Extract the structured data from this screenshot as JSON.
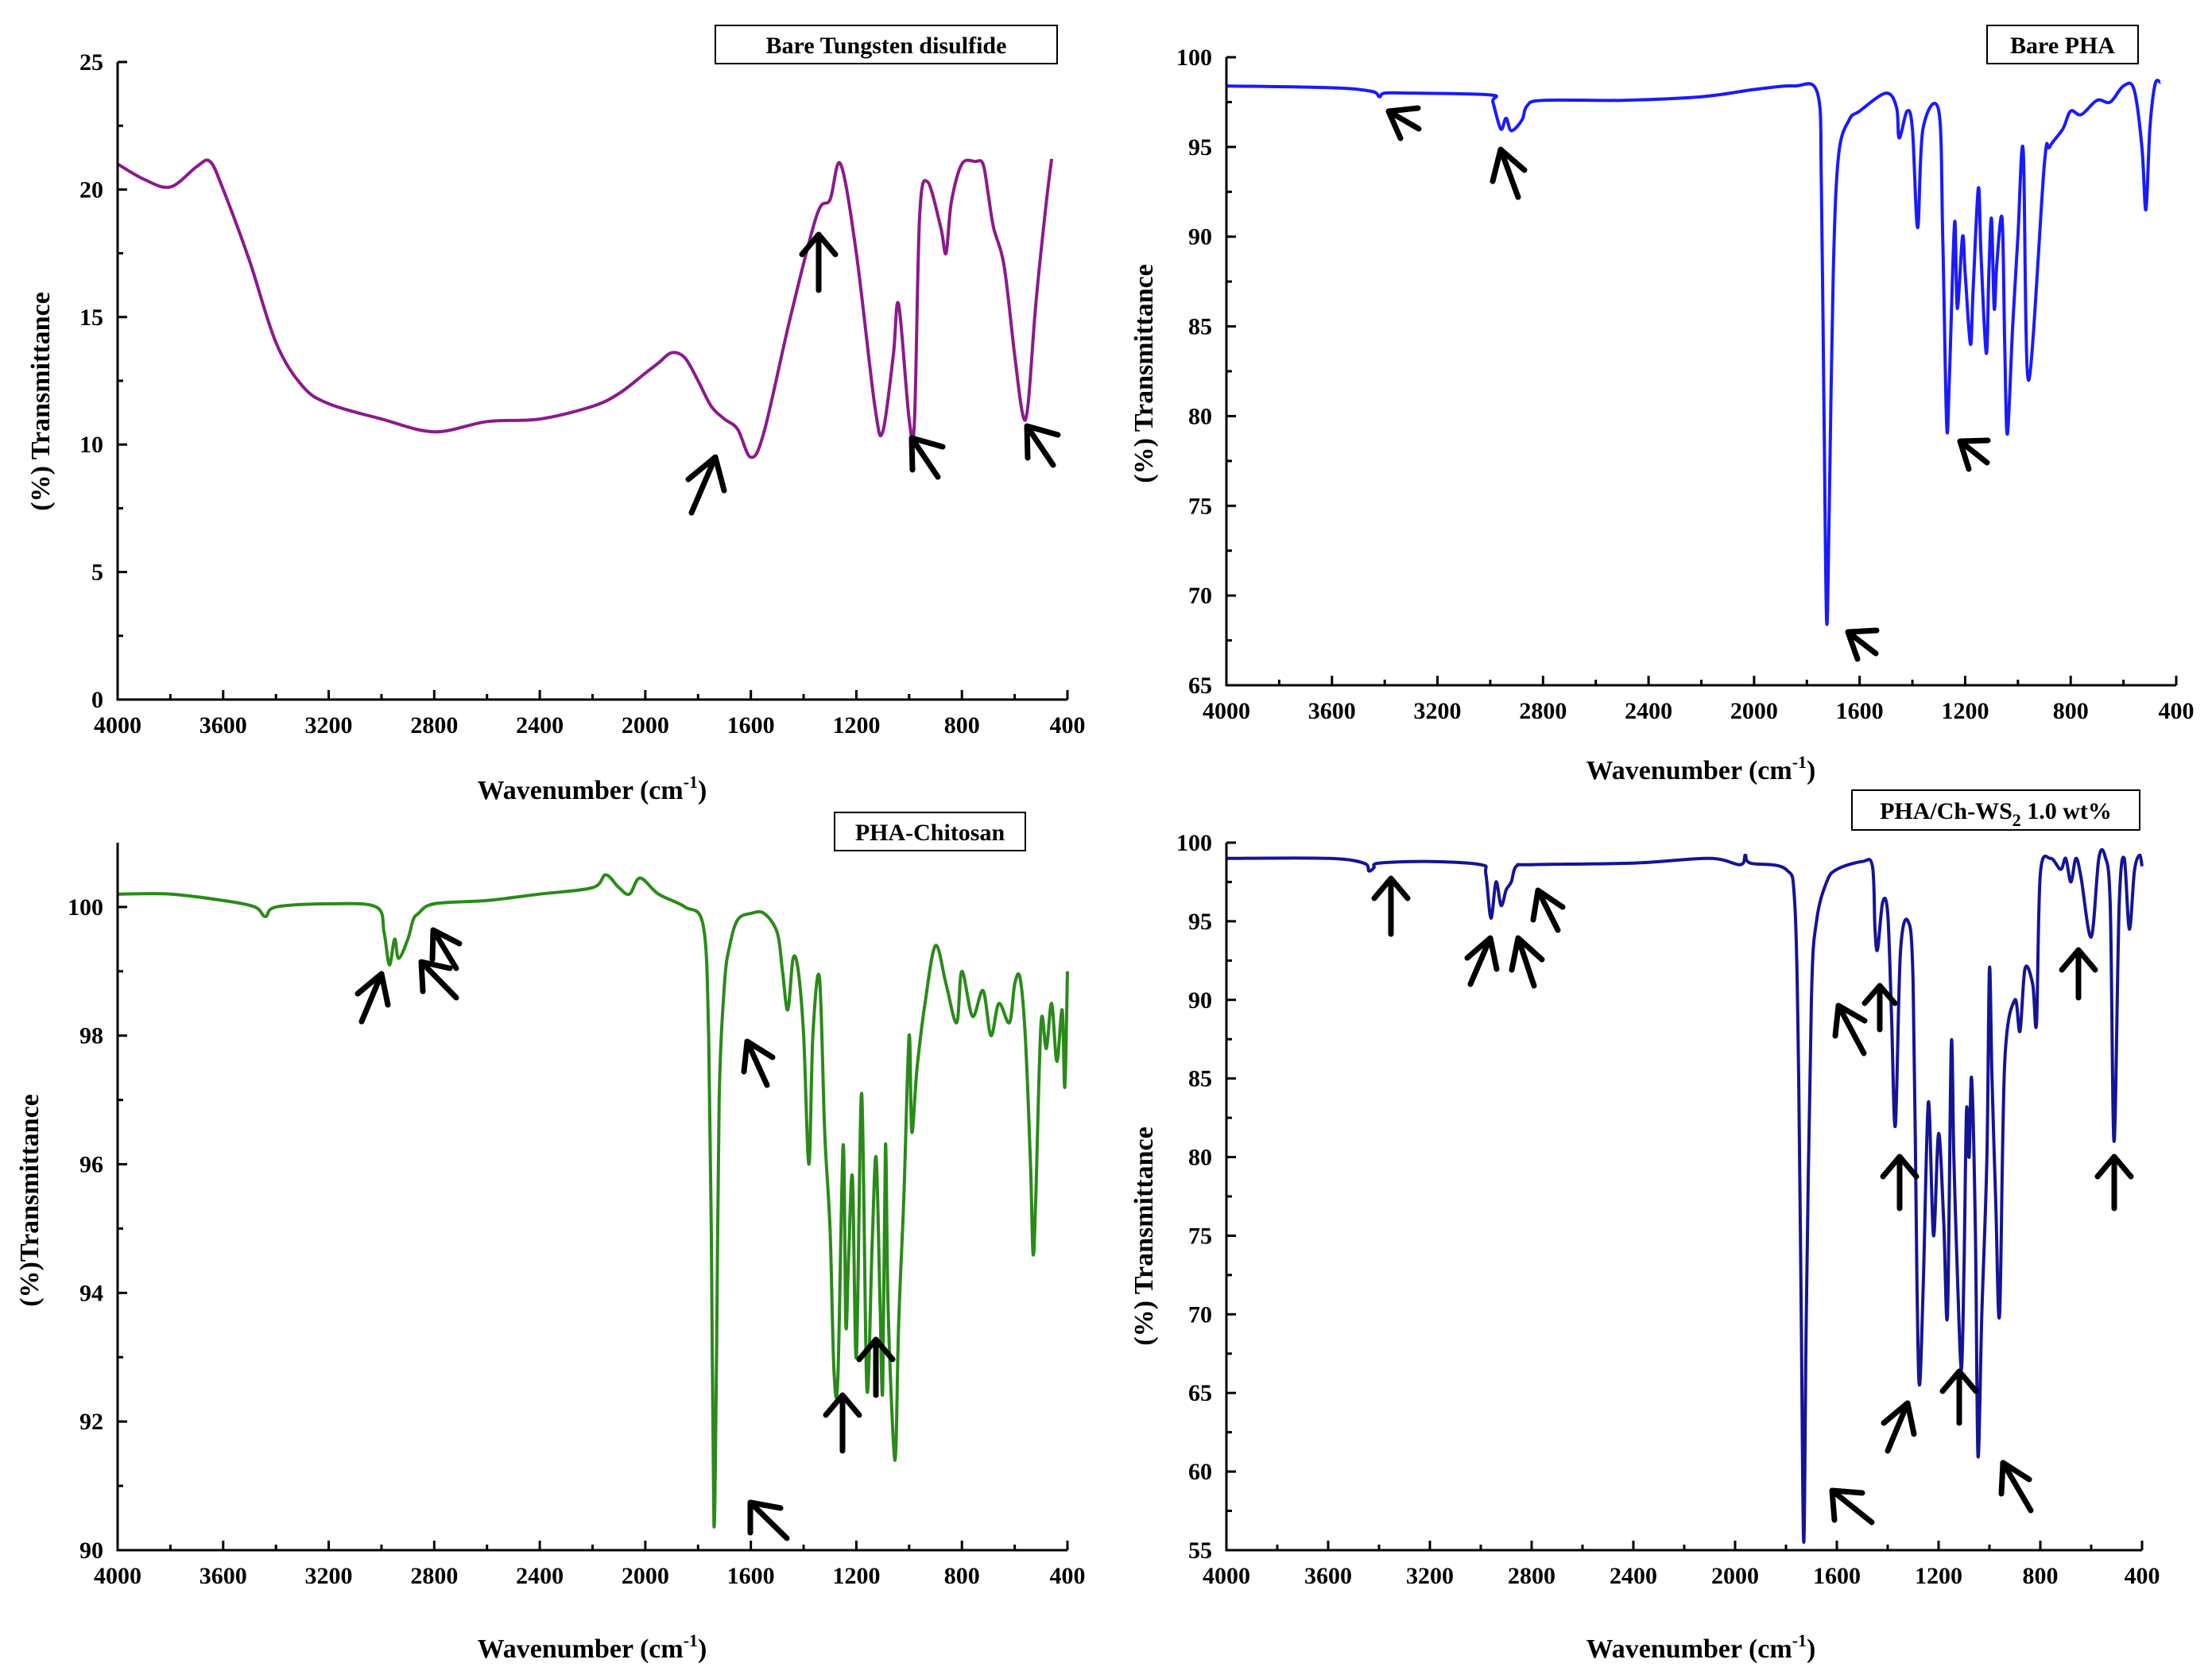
{
  "chart_data": [
    {
      "type": "line",
      "title": "Bare Tungsten disulfide",
      "xlabel": "Wavenumber (cm",
      "xlabel_sup": "-1",
      "xlabel_close": ")",
      "ylabel": "(%) Transmittance",
      "xlim": [
        4000,
        400
      ],
      "ylim": [
        0,
        25
      ],
      "xticks": [
        4000,
        3600,
        3200,
        2800,
        2400,
        2000,
        1600,
        1200,
        800,
        400
      ],
      "yticks": [
        0,
        5,
        10,
        15,
        20,
        25
      ],
      "color": "#8b1a8b",
      "series": [
        {
          "name": "Bare Tungsten disulfide",
          "x": [
            4000,
            3900,
            3800,
            3700,
            3650,
            3600,
            3500,
            3400,
            3300,
            3200,
            3000,
            2800,
            2600,
            2400,
            2200,
            2100,
            2000,
            1950,
            1900,
            1850,
            1800,
            1750,
            1700,
            1650,
            1600,
            1550,
            1450,
            1350,
            1300,
            1260,
            1200,
            1130,
            1100,
            1060,
            1040,
            1000,
            980,
            960,
            930,
            880,
            860,
            840,
            800,
            750,
            720,
            700,
            680,
            640,
            600,
            570,
            550,
            520,
            480,
            460
          ],
          "values": [
            21.0,
            20.4,
            20.1,
            20.9,
            21.1,
            20.0,
            17.2,
            14.0,
            12.3,
            11.6,
            11.0,
            10.5,
            10.9,
            11.0,
            11.5,
            12.0,
            12.8,
            13.2,
            13.6,
            13.4,
            12.5,
            11.5,
            11.0,
            10.6,
            9.5,
            10.5,
            15.0,
            19.0,
            19.6,
            21.0,
            17.5,
            11.5,
            10.5,
            13.5,
            15.5,
            11.0,
            10.9,
            19.0,
            20.3,
            18.5,
            17.5,
            19.5,
            21.0,
            21.1,
            21.0,
            19.8,
            18.5,
            17.0,
            13.5,
            11.2,
            11.5,
            15.5,
            19.5,
            21.2
          ]
        }
      ],
      "annotations": [
        "arrow",
        "arrow",
        "arrow",
        "arrow"
      ]
    },
    {
      "type": "line",
      "title": "Bare PHA",
      "xlabel": "Wavenumber (cm",
      "xlabel_sup": "-1",
      "xlabel_close": ")",
      "ylabel": "(%) Transmittance",
      "xlim": [
        4000,
        400
      ],
      "ylim": [
        65,
        100
      ],
      "xticks": [
        4000,
        3600,
        3200,
        2800,
        2400,
        2000,
        1600,
        1200,
        800,
        400
      ],
      "yticks": [
        65,
        70,
        75,
        80,
        85,
        90,
        95,
        100
      ],
      "color": "#1a1aff",
      "series": [
        {
          "name": "Bare PHA",
          "x": [
            4000,
            3600,
            3450,
            3420,
            3400,
            3300,
            3000,
            2990,
            2960,
            2940,
            2920,
            2880,
            2860,
            2800,
            2500,
            2200,
            2000,
            1850,
            1760,
            1745,
            1735,
            1725,
            1715,
            1700,
            1680,
            1640,
            1600,
            1500,
            1460,
            1450,
            1420,
            1400,
            1380,
            1360,
            1300,
            1285,
            1270,
            1260,
            1240,
            1230,
            1210,
            1200,
            1180,
            1170,
            1150,
            1140,
            1120,
            1110,
            1100,
            1090,
            1080,
            1060,
            1050,
            1040,
            1020,
            1000,
            980,
            960,
            900,
            880,
            830,
            800,
            760,
            700,
            650,
            600,
            560,
            530,
            515,
            500,
            480,
            460
          ],
          "values": [
            98.4,
            98.3,
            98.1,
            97.8,
            98.0,
            98.0,
            97.9,
            97.5,
            96.0,
            96.6,
            95.9,
            96.5,
            97.3,
            97.6,
            97.6,
            97.8,
            98.2,
            98.4,
            98.0,
            93.0,
            80.0,
            68.5,
            75.0,
            88.0,
            94.5,
            96.5,
            97.0,
            98.0,
            97.2,
            95.5,
            97.0,
            96.0,
            90.5,
            96.0,
            97.0,
            90.0,
            79.5,
            82.0,
            90.8,
            86.0,
            90.0,
            88.0,
            84.0,
            87.0,
            92.7,
            89.0,
            83.5,
            88.0,
            91.0,
            86.0,
            88.5,
            91.0,
            84.0,
            79.0,
            85.0,
            90.0,
            94.8,
            82.0,
            94.0,
            95.0,
            96.0,
            97.0,
            96.8,
            97.6,
            97.5,
            98.4,
            98.2,
            95.0,
            91.5,
            96.0,
            98.5,
            98.6
          ]
        }
      ],
      "annotations": [
        "arrow",
        "arrow",
        "arrow",
        "arrow"
      ]
    },
    {
      "type": "line",
      "title": "PHA-Chitosan",
      "xlabel": "Wavenumber (cm",
      "xlabel_sup": "-1",
      "xlabel_close": ")",
      "ylabel": "(%)Transmittance",
      "xlim": [
        4000,
        400
      ],
      "ylim": [
        90,
        101
      ],
      "xticks": [
        4000,
        3600,
        3200,
        2800,
        2400,
        2000,
        1600,
        1200,
        800,
        400
      ],
      "yticks": [
        90,
        92,
        94,
        96,
        98,
        100
      ],
      "color": "#2a8a1a",
      "series": [
        {
          "name": "PHA-Chitosan",
          "x": [
            4000,
            3800,
            3600,
            3480,
            3440,
            3400,
            3200,
            3020,
            2990,
            2970,
            2950,
            2935,
            2900,
            2880,
            2860,
            2800,
            2600,
            2400,
            2200,
            2150,
            2100,
            2060,
            2020,
            1950,
            1850,
            1780,
            1760,
            1750,
            1740,
            1730,
            1720,
            1700,
            1680,
            1650,
            1600,
            1550,
            1500,
            1480,
            1460,
            1440,
            1420,
            1400,
            1380,
            1365,
            1340,
            1320,
            1300,
            1285,
            1270,
            1250,
            1240,
            1230,
            1215,
            1200,
            1180,
            1160,
            1140,
            1125,
            1110,
            1100,
            1090,
            1080,
            1060,
            1050,
            1040,
            1020,
            1000,
            990,
            970,
            940,
            900,
            860,
            820,
            800,
            760,
            720,
            690,
            660,
            620,
            600,
            580,
            560,
            540,
            530,
            520,
            500,
            480,
            460,
            440,
            420,
            410,
            400
          ],
          "values": [
            100.2,
            100.2,
            100.1,
            100.0,
            99.85,
            100.0,
            100.05,
            100.0,
            99.6,
            99.1,
            99.5,
            99.2,
            99.5,
            99.8,
            99.9,
            100.05,
            100.1,
            100.2,
            100.3,
            100.5,
            100.3,
            100.2,
            100.45,
            100.2,
            100.0,
            99.7,
            98.0,
            95.0,
            90.4,
            93.0,
            97.0,
            98.8,
            99.4,
            99.8,
            99.9,
            99.9,
            99.6,
            99.0,
            98.4,
            99.2,
            99.0,
            98.0,
            96.0,
            98.0,
            98.9,
            96.5,
            95.0,
            92.8,
            92.7,
            96.3,
            93.5,
            94.5,
            95.8,
            93.0,
            97.1,
            92.5,
            94.8,
            96.1,
            93.8,
            92.5,
            96.3,
            93.8,
            91.7,
            91.6,
            93.5,
            95.5,
            98.0,
            96.5,
            97.5,
            98.5,
            99.4,
            98.8,
            98.2,
            99.0,
            98.3,
            98.7,
            98.0,
            98.5,
            98.2,
            98.8,
            98.9,
            98.0,
            96.0,
            94.6,
            95.5,
            98.2,
            97.8,
            98.5,
            97.6,
            98.4,
            97.2,
            99.0
          ]
        }
      ],
      "annotations": [
        "arrow",
        "arrow",
        "arrow",
        "arrow",
        "arrow",
        "arrow",
        "arrow"
      ]
    },
    {
      "type": "line",
      "title": "PHA/Ch-WS",
      "title_sub": "2",
      "title_suffix": " 1.0 wt%",
      "xlabel": "Wavenumber (cm",
      "xlabel_sup": "-1",
      "xlabel_close": ")",
      "ylabel": "(%) Transmittance",
      "xlim": [
        4000,
        400
      ],
      "ylim": [
        55,
        100
      ],
      "xticks": [
        4000,
        3600,
        3200,
        2800,
        2400,
        2000,
        1600,
        1200,
        800,
        400
      ],
      "yticks": [
        55,
        60,
        65,
        70,
        75,
        80,
        85,
        90,
        95,
        100
      ],
      "color": "#141496",
      "series": [
        {
          "name": "PHA/Ch-WS2 1.0 wt%",
          "x": [
            4000,
            3600,
            3460,
            3440,
            3420,
            3400,
            3200,
            3000,
            2980,
            2960,
            2940,
            2920,
            2900,
            2880,
            2860,
            2800,
            2400,
            2100,
            1980,
            1960,
            1940,
            1800,
            1765,
            1750,
            1740,
            1730,
            1720,
            1700,
            1680,
            1640,
            1600,
            1500,
            1460,
            1450,
            1440,
            1420,
            1400,
            1385,
            1370,
            1350,
            1320,
            1300,
            1285,
            1275,
            1260,
            1240,
            1220,
            1200,
            1180,
            1165,
            1150,
            1140,
            1125,
            1110,
            1100,
            1090,
            1080,
            1070,
            1055,
            1045,
            1030,
            1010,
            1000,
            990,
            975,
            960,
            940,
            900,
            880,
            860,
            830,
            815,
            800,
            760,
            720,
            700,
            680,
            660,
            640,
            600,
            570,
            545,
            525,
            510,
            490,
            470,
            450,
            430,
            410,
            400
          ],
          "values": [
            99.0,
            99.0,
            98.7,
            98.2,
            98.4,
            98.7,
            98.8,
            98.6,
            98.0,
            95.2,
            97.5,
            96.0,
            97.0,
            97.5,
            98.5,
            98.6,
            98.7,
            99.0,
            98.6,
            99.2,
            98.7,
            98.3,
            96.0,
            85.0,
            70.0,
            55.5,
            70.0,
            90.0,
            95.0,
            97.5,
            98.3,
            98.8,
            98.5,
            94.5,
            93.2,
            96.2,
            95.5,
            89.0,
            82.0,
            93.0,
            95.0,
            91.0,
            72.0,
            65.5,
            72.0,
            83.5,
            75.0,
            81.5,
            76.0,
            70.0,
            87.2,
            80.0,
            72.0,
            66.5,
            73.0,
            83.0,
            80.0,
            85.0,
            75.0,
            61.0,
            70.0,
            80.0,
            92.0,
            85.0,
            77.0,
            70.0,
            86.0,
            90.0,
            88.0,
            92.0,
            91.0,
            88.5,
            98.0,
            99.0,
            98.3,
            99.0,
            97.5,
            99.0,
            97.8,
            94.0,
            99.0,
            99.1,
            96.0,
            81.0,
            96.0,
            99.0,
            94.5,
            98.2,
            99.2,
            98.5
          ]
        }
      ],
      "annotations": [
        "arrow",
        "arrow",
        "arrow",
        "arrow",
        "arrow",
        "arrow",
        "arrow",
        "arrow",
        "arrow",
        "arrow",
        "arrow",
        "arrow",
        "arrow"
      ]
    }
  ]
}
